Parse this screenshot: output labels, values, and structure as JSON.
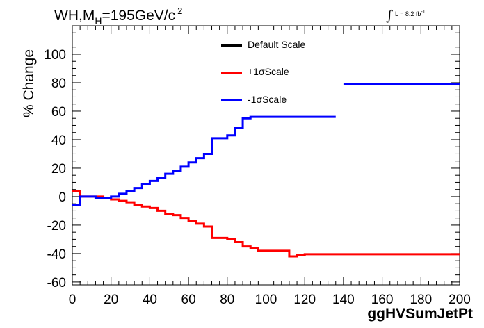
{
  "title": {
    "main": "WH,M",
    "sub": "H",
    "rest": "=195GeV/c",
    "sup": "2"
  },
  "luminosity": {
    "integral": "∫",
    "text": "L = 8.2 fb",
    "sup": "-1"
  },
  "chart_data": {
    "type": "line",
    "xlabel": "ggHVSumJetPt",
    "ylabel": "% Change",
    "xlim": [
      0,
      200
    ],
    "ylim": [
      -62,
      120
    ],
    "xticks": [
      0,
      20,
      40,
      60,
      80,
      100,
      120,
      140,
      160,
      180,
      200
    ],
    "yticks": [
      -60,
      -40,
      -20,
      0,
      20,
      40,
      60,
      80,
      100
    ],
    "legend_position": "top-center",
    "series": [
      {
        "name": "Default Scale",
        "color": "#000000",
        "bin_edges": [],
        "values": []
      },
      {
        "name": "+1σScale",
        "color": "#ff0000",
        "bin_edges": [
          0,
          4,
          8,
          12,
          16,
          20,
          24,
          28,
          32,
          36,
          40,
          44,
          48,
          52,
          56,
          60,
          64,
          68,
          72,
          76,
          80,
          84,
          88,
          92,
          96,
          100,
          104,
          108,
          112,
          116,
          120,
          124,
          128,
          132,
          136,
          140,
          144,
          148,
          152,
          156,
          160,
          164,
          168,
          172,
          176,
          180,
          184,
          188,
          192,
          196,
          200
        ],
        "values": [
          4,
          0,
          0,
          0,
          -1,
          -2,
          -3,
          -4,
          -6,
          -7,
          -8,
          -10,
          -12,
          -13,
          -15,
          -17,
          -19,
          -21,
          -29,
          -29,
          -30,
          -32,
          -35,
          -36,
          -38,
          -38,
          -38,
          -38,
          -42,
          -41,
          -40.5,
          -40.5,
          -40.5,
          -40.5,
          -40.5,
          -40.5,
          -40.5,
          -40.5,
          -40.5,
          -40.5,
          -40.5,
          -40.5,
          -40.5,
          -40.5,
          -40.5,
          -40.5,
          -40.5,
          -40.5,
          -40.5,
          -40.5
        ]
      },
      {
        "name": "-1σScale",
        "color": "#0000ff",
        "bin_edges": [
          0,
          4,
          8,
          12,
          16,
          20,
          24,
          28,
          32,
          36,
          40,
          44,
          48,
          52,
          56,
          60,
          64,
          68,
          72,
          76,
          80,
          84,
          88,
          92,
          136,
          140,
          144,
          148,
          152,
          156,
          160,
          164,
          168,
          172,
          176,
          180,
          184,
          188,
          192,
          196,
          200
        ],
        "values": [
          -6,
          0,
          0,
          -1,
          -1,
          0,
          2,
          4,
          6,
          9,
          11,
          13,
          16,
          18,
          21,
          24,
          27,
          30,
          41,
          41,
          43,
          48,
          55,
          56,
          null,
          79,
          79,
          79,
          79,
          79,
          79,
          79,
          79,
          79,
          79,
          79,
          79,
          79,
          79,
          79,
          79
        ]
      }
    ]
  }
}
